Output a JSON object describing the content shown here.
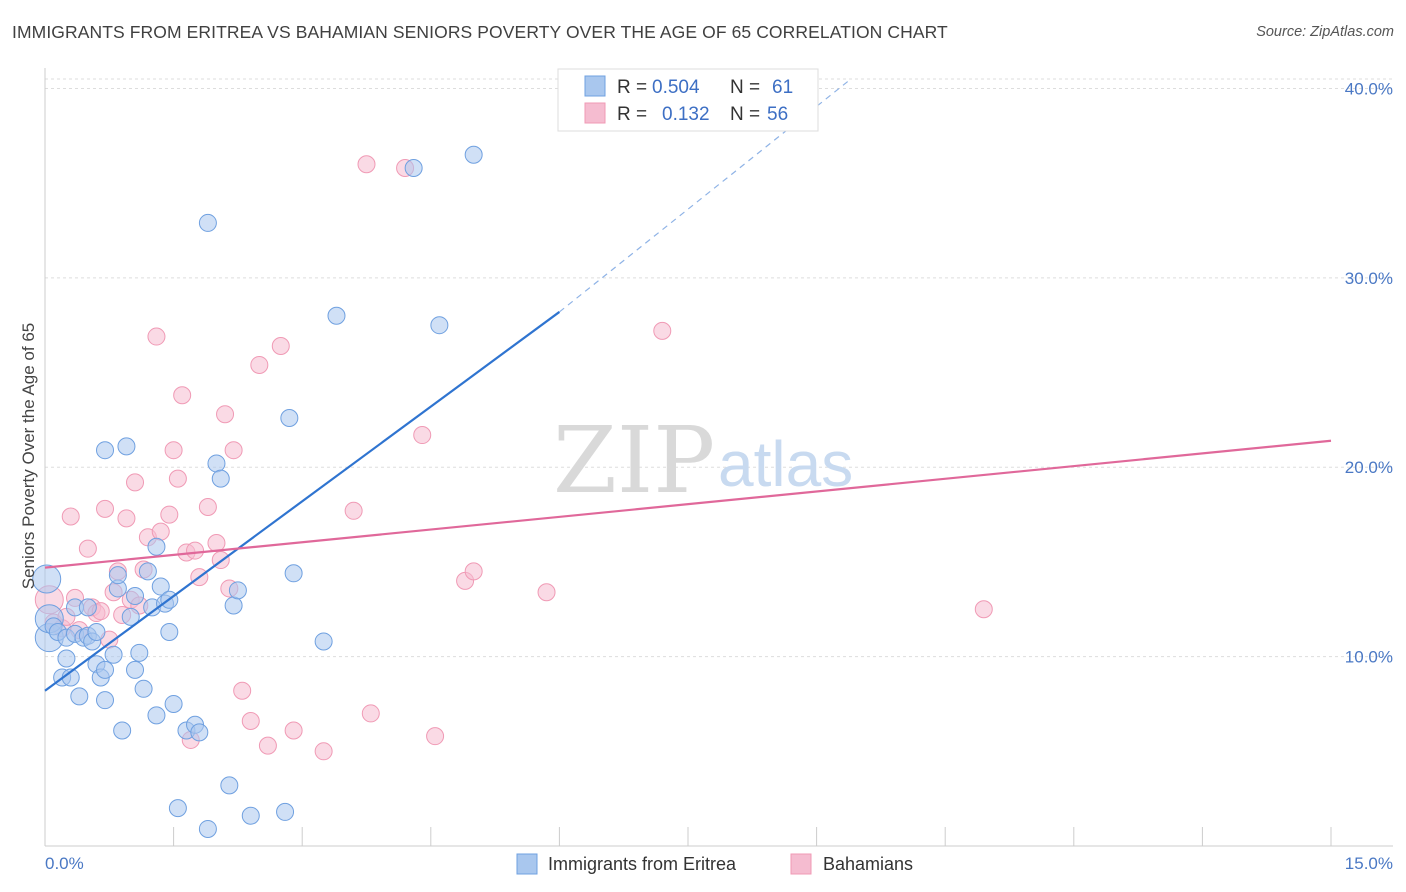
{
  "title": "IMMIGRANTS FROM ERITREA VS BAHAMIAN SENIORS POVERTY OVER THE AGE OF 65 CORRELATION CHART",
  "source": "Source: ZipAtlas.com",
  "watermark": {
    "zip": "ZIP",
    "atlas": "atlas"
  },
  "legend": {
    "r_label": "R =",
    "n_label": "N =",
    "rows": [
      {
        "r": "0.504",
        "n": "61",
        "color": "#6fa0e0"
      },
      {
        "r": "0.132",
        "n": "56",
        "color": "#f09ab5"
      }
    ]
  },
  "colors": {
    "blue_fill": "#a9c7ee",
    "blue_stroke": "#6fa0e0",
    "blue_line": "#2f74d0",
    "pink_fill": "#f5bcd0",
    "pink_stroke": "#f09ab5",
    "pink_line": "#e0689a",
    "grid": "#dddddd",
    "axis_text": "#4a78c4"
  },
  "chart_data": {
    "type": "scatter",
    "title": "IMMIGRANTS FROM ERITREA VS BAHAMIAN SENIORS POVERTY OVER THE AGE OF 65 CORRELATION CHART",
    "xlabel": "",
    "ylabel": "Seniors Poverty Over the Age of 65",
    "xlim": [
      0,
      15
    ],
    "ylim": [
      0,
      40.5
    ],
    "x_tick_labels": [
      "0.0%",
      "15.0%"
    ],
    "y_ticks": [
      10,
      20,
      30,
      40
    ],
    "y_tick_labels": [
      "10.0%",
      "20.0%",
      "30.0%",
      "40.0%"
    ],
    "grid": true,
    "legend_position": "top-center",
    "series": [
      {
        "name": "Immigrants from Eritrea",
        "color": "#6fa0e0",
        "trend": {
          "x0": 0,
          "y0": 8.2,
          "x1": 6.0,
          "y1": 28.2,
          "dashed_to_x": 9.4,
          "dashed_to_y": 40.5
        },
        "points": [
          [
            0.05,
            11.0
          ],
          [
            0.05,
            12.0
          ],
          [
            0.1,
            11.6
          ],
          [
            0.15,
            11.3
          ],
          [
            0.2,
            8.9
          ],
          [
            0.25,
            11.0
          ],
          [
            0.25,
            9.9
          ],
          [
            0.3,
            8.9
          ],
          [
            0.35,
            12.6
          ],
          [
            0.35,
            11.2
          ],
          [
            0.4,
            7.9
          ],
          [
            0.45,
            11.0
          ],
          [
            0.5,
            11.1
          ],
          [
            0.5,
            12.6
          ],
          [
            0.55,
            10.8
          ],
          [
            0.6,
            11.3
          ],
          [
            0.6,
            9.6
          ],
          [
            0.65,
            8.9
          ],
          [
            0.7,
            9.3
          ],
          [
            0.7,
            7.7
          ],
          [
            0.7,
            20.9
          ],
          [
            0.8,
            10.1
          ],
          [
            0.85,
            13.6
          ],
          [
            0.85,
            14.3
          ],
          [
            0.9,
            6.1
          ],
          [
            0.95,
            21.1
          ],
          [
            1.0,
            12.1
          ],
          [
            1.05,
            9.3
          ],
          [
            1.05,
            13.2
          ],
          [
            1.1,
            10.2
          ],
          [
            1.15,
            8.3
          ],
          [
            1.2,
            14.5
          ],
          [
            1.25,
            12.6
          ],
          [
            1.3,
            15.8
          ],
          [
            1.3,
            6.9
          ],
          [
            1.35,
            13.7
          ],
          [
            1.4,
            12.8
          ],
          [
            1.45,
            13.0
          ],
          [
            1.45,
            11.3
          ],
          [
            1.5,
            7.5
          ],
          [
            1.55,
            2.0
          ],
          [
            1.65,
            6.1
          ],
          [
            1.75,
            6.4
          ],
          [
            1.8,
            6.0
          ],
          [
            1.9,
            0.9
          ],
          [
            1.9,
            32.9
          ],
          [
            2.0,
            20.2
          ],
          [
            2.05,
            19.4
          ],
          [
            2.15,
            3.2
          ],
          [
            2.2,
            12.7
          ],
          [
            2.25,
            13.5
          ],
          [
            2.4,
            1.6
          ],
          [
            2.8,
            1.8
          ],
          [
            2.85,
            22.6
          ],
          [
            2.9,
            14.4
          ],
          [
            3.25,
            10.8
          ],
          [
            3.4,
            28.0
          ],
          [
            4.3,
            35.8
          ],
          [
            4.6,
            27.5
          ],
          [
            5.0,
            36.5
          ],
          [
            0.02,
            14.1
          ]
        ]
      },
      {
        "name": "Bahamians",
        "color": "#f09ab5",
        "trend": {
          "x0": 0,
          "y0": 14.7,
          "x1": 15.0,
          "y1": 21.4
        },
        "points": [
          [
            0.05,
            13.0
          ],
          [
            0.1,
            11.8
          ],
          [
            0.2,
            11.5
          ],
          [
            0.25,
            12.1
          ],
          [
            0.3,
            17.4
          ],
          [
            0.35,
            13.1
          ],
          [
            0.4,
            11.4
          ],
          [
            0.5,
            15.7
          ],
          [
            0.55,
            12.6
          ],
          [
            0.6,
            12.3
          ],
          [
            0.65,
            12.4
          ],
          [
            0.7,
            17.8
          ],
          [
            0.75,
            10.9
          ],
          [
            0.8,
            13.4
          ],
          [
            0.85,
            14.5
          ],
          [
            0.9,
            12.2
          ],
          [
            0.95,
            17.3
          ],
          [
            1.0,
            13.0
          ],
          [
            1.05,
            19.2
          ],
          [
            1.1,
            12.7
          ],
          [
            1.15,
            14.6
          ],
          [
            1.2,
            16.3
          ],
          [
            1.3,
            26.9
          ],
          [
            1.35,
            16.6
          ],
          [
            1.45,
            17.5
          ],
          [
            1.5,
            20.9
          ],
          [
            1.55,
            19.4
          ],
          [
            1.6,
            23.8
          ],
          [
            1.65,
            15.5
          ],
          [
            1.7,
            5.6
          ],
          [
            1.75,
            15.6
          ],
          [
            1.8,
            14.2
          ],
          [
            1.9,
            17.9
          ],
          [
            2.0,
            16.0
          ],
          [
            2.05,
            15.1
          ],
          [
            2.1,
            22.8
          ],
          [
            2.15,
            13.6
          ],
          [
            2.2,
            20.9
          ],
          [
            2.3,
            8.2
          ],
          [
            2.4,
            6.6
          ],
          [
            2.5,
            25.4
          ],
          [
            2.6,
            5.3
          ],
          [
            2.75,
            26.4
          ],
          [
            2.9,
            6.1
          ],
          [
            3.25,
            5.0
          ],
          [
            3.6,
            17.7
          ],
          [
            3.75,
            36.0
          ],
          [
            3.8,
            7.0
          ],
          [
            4.2,
            35.8
          ],
          [
            4.4,
            21.7
          ],
          [
            4.55,
            5.8
          ],
          [
            4.9,
            14.0
          ],
          [
            5.0,
            14.5
          ],
          [
            5.85,
            13.4
          ],
          [
            7.2,
            27.2
          ],
          [
            10.95,
            12.5
          ]
        ]
      }
    ]
  },
  "bottom_legend": [
    {
      "label": "Immigrants from Eritrea",
      "color": "#a9c7ee",
      "border": "#6fa0e0"
    },
    {
      "label": "Bahamians",
      "color": "#f5bcd0",
      "border": "#f09ab5"
    }
  ]
}
